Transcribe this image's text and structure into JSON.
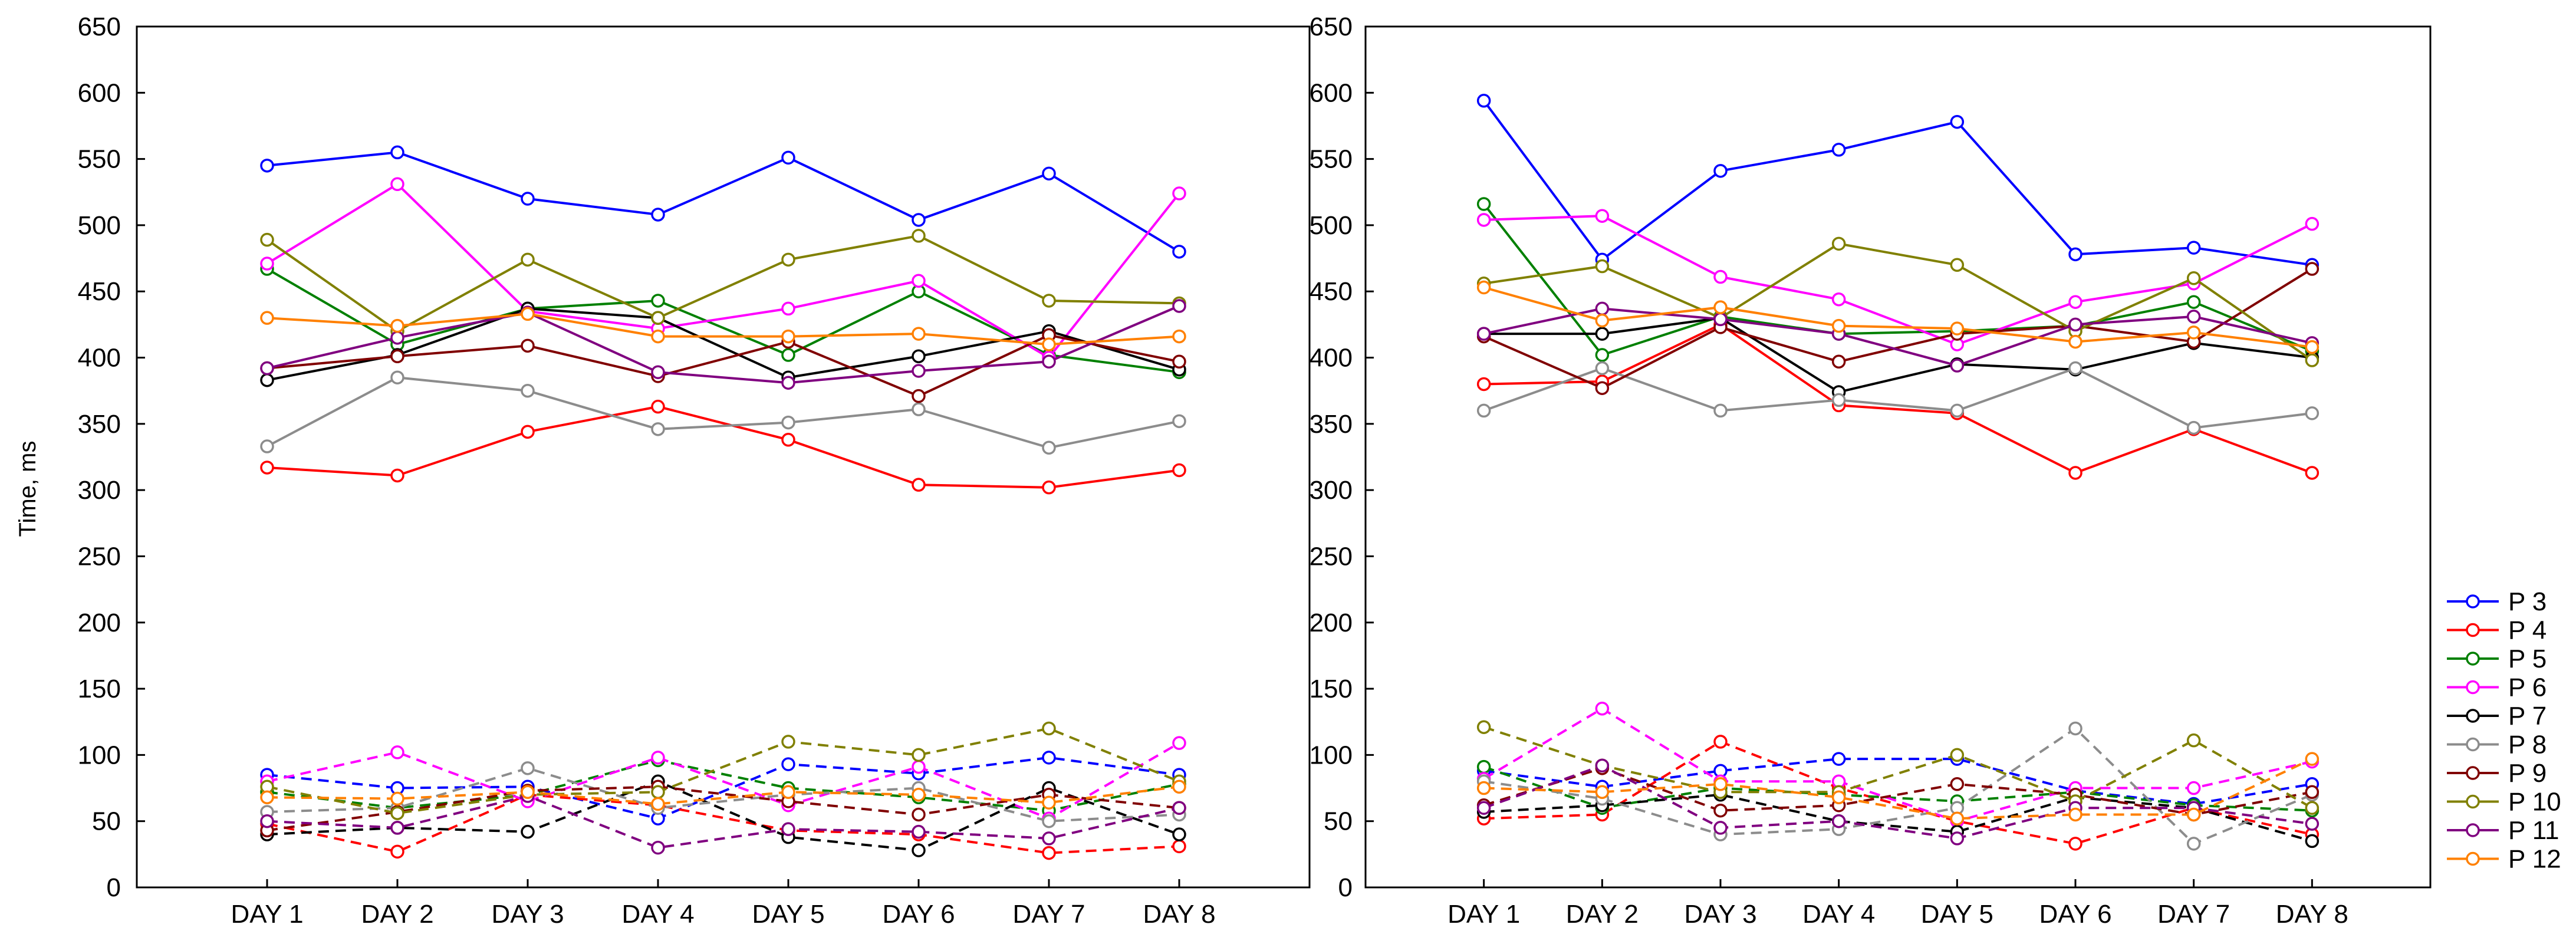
{
  "chart_data": [
    {
      "type": "line",
      "title": "",
      "xlabel": "",
      "ylabel": "Time, ms",
      "ylim": [
        0,
        650
      ],
      "yticks": [
        0,
        50,
        100,
        150,
        200,
        250,
        300,
        350,
        400,
        450,
        500,
        550,
        600,
        650
      ],
      "grid": false,
      "categories": [
        "DAY 1",
        "DAY 2",
        "DAY 3",
        "DAY 4",
        "DAY 5",
        "DAY 6",
        "DAY 7",
        "DAY 8"
      ],
      "series": [
        {
          "name": "P 3",
          "group": "solid",
          "values": [
            545,
            555,
            520,
            508,
            551,
            504,
            539,
            480
          ]
        },
        {
          "name": "P 4",
          "group": "solid",
          "values": [
            317,
            311,
            344,
            363,
            338,
            304,
            302,
            315
          ]
        },
        {
          "name": "P 5",
          "group": "solid",
          "values": [
            467,
            410,
            437,
            443,
            402,
            450,
            402,
            389
          ]
        },
        {
          "name": "P 6",
          "group": "solid",
          "values": [
            471,
            531,
            435,
            422,
            437,
            458,
            400,
            524
          ]
        },
        {
          "name": "P 7",
          "group": "solid",
          "values": [
            383,
            402,
            437,
            430,
            385,
            401,
            420,
            391
          ]
        },
        {
          "name": "P 8",
          "group": "solid",
          "values": [
            333,
            385,
            375,
            346,
            351,
            361,
            332,
            352
          ]
        },
        {
          "name": "P 9",
          "group": "solid",
          "values": [
            392,
            401,
            409,
            386,
            412,
            371,
            417,
            397
          ]
        },
        {
          "name": "P 10",
          "group": "solid",
          "values": [
            489,
            420,
            474,
            430,
            474,
            492,
            443,
            441
          ]
        },
        {
          "name": "P 11",
          "group": "solid",
          "values": [
            392,
            415,
            434,
            389,
            381,
            390,
            397,
            439
          ]
        },
        {
          "name": "P 12",
          "group": "solid",
          "values": [
            430,
            424,
            433,
            416,
            416,
            418,
            410,
            416
          ]
        },
        {
          "name": "P 3",
          "group": "dashed",
          "values": [
            85,
            75,
            76,
            52,
            93,
            86,
            98,
            85
          ]
        },
        {
          "name": "P 4",
          "group": "dashed",
          "values": [
            48,
            27,
            70,
            62,
            43,
            40,
            26,
            31
          ]
        },
        {
          "name": "P 5",
          "group": "dashed",
          "values": [
            72,
            60,
            70,
            96,
            75,
            68,
            58,
            78
          ]
        },
        {
          "name": "P 6",
          "group": "dashed",
          "values": [
            80,
            102,
            65,
            98,
            62,
            91,
            52,
            109
          ]
        },
        {
          "name": "P 7",
          "group": "dashed",
          "values": [
            40,
            45,
            42,
            80,
            38,
            28,
            75,
            40
          ]
        },
        {
          "name": "P 8",
          "group": "dashed",
          "values": [
            57,
            60,
            90,
            60,
            70,
            75,
            50,
            55
          ]
        },
        {
          "name": "P 9",
          "group": "dashed",
          "values": [
            43,
            57,
            73,
            76,
            65,
            55,
            70,
            60
          ]
        },
        {
          "name": "P 10",
          "group": "dashed",
          "values": [
            76,
            56,
            70,
            72,
            110,
            100,
            120,
            80
          ]
        },
        {
          "name": "P 11",
          "group": "dashed",
          "values": [
            50,
            45,
            69,
            30,
            44,
            42,
            37,
            60
          ]
        },
        {
          "name": "P 12",
          "group": "dashed",
          "values": [
            68,
            67,
            72,
            63,
            72,
            70,
            64,
            76
          ]
        }
      ]
    },
    {
      "type": "line",
      "title": "",
      "xlabel": "",
      "ylabel": "",
      "ylim": [
        0,
        650
      ],
      "yticks": [
        0,
        50,
        100,
        150,
        200,
        250,
        300,
        350,
        400,
        450,
        500,
        550,
        600,
        650
      ],
      "grid": false,
      "categories": [
        "DAY 1",
        "DAY 2",
        "DAY 3",
        "DAY 4",
        "DAY 5",
        "DAY 6",
        "DAY 7",
        "DAY 8"
      ],
      "series": [
        {
          "name": "P 3",
          "group": "solid",
          "values": [
            594,
            474,
            541,
            557,
            578,
            478,
            483,
            470
          ]
        },
        {
          "name": "P 4",
          "group": "solid",
          "values": [
            380,
            382,
            425,
            364,
            358,
            313,
            346,
            313
          ]
        },
        {
          "name": "P 5",
          "group": "solid",
          "values": [
            516,
            402,
            431,
            418,
            420,
            424,
            442,
            405
          ]
        },
        {
          "name": "P 6",
          "group": "solid",
          "values": [
            504,
            507,
            461,
            444,
            410,
            442,
            456,
            501
          ]
        },
        {
          "name": "P 7",
          "group": "solid",
          "values": [
            418,
            418,
            430,
            374,
            395,
            391,
            411,
            400
          ]
        },
        {
          "name": "P 8",
          "group": "solid",
          "values": [
            360,
            392,
            360,
            368,
            360,
            392,
            347,
            358
          ]
        },
        {
          "name": "P 9",
          "group": "solid",
          "values": [
            416,
            377,
            423,
            397,
            418,
            424,
            412,
            467
          ]
        },
        {
          "name": "P 10",
          "group": "solid",
          "values": [
            456,
            469,
            430,
            486,
            470,
            420,
            460,
            398
          ]
        },
        {
          "name": "P 11",
          "group": "solid",
          "values": [
            418,
            437,
            429,
            418,
            394,
            425,
            431,
            411
          ]
        },
        {
          "name": "P 12",
          "group": "solid",
          "values": [
            453,
            428,
            438,
            424,
            422,
            412,
            419,
            408
          ]
        },
        {
          "name": "P 3",
          "group": "dashed",
          "values": [
            88,
            76,
            88,
            97,
            97,
            73,
            63,
            78
          ]
        },
        {
          "name": "P 4",
          "group": "dashed",
          "values": [
            52,
            55,
            110,
            75,
            50,
            33,
            60,
            40
          ]
        },
        {
          "name": "P 5",
          "group": "dashed",
          "values": [
            91,
            60,
            75,
            70,
            65,
            72,
            62,
            58
          ]
        },
        {
          "name": "P 6",
          "group": "dashed",
          "values": [
            82,
            135,
            80,
            80,
            50,
            75,
            75,
            95
          ]
        },
        {
          "name": "P 7",
          "group": "dashed",
          "values": [
            57,
            62,
            70,
            50,
            42,
            68,
            60,
            35
          ]
        },
        {
          "name": "P 8",
          "group": "dashed",
          "values": [
            80,
            67,
            40,
            44,
            60,
            120,
            33,
            70
          ]
        },
        {
          "name": "P 9",
          "group": "dashed",
          "values": [
            62,
            90,
            58,
            62,
            78,
            70,
            55,
            72
          ]
        },
        {
          "name": "P 10",
          "group": "dashed",
          "values": [
            121,
            92,
            72,
            72,
            100,
            65,
            111,
            60
          ]
        },
        {
          "name": "P 11",
          "group": "dashed",
          "values": [
            60,
            92,
            45,
            50,
            37,
            60,
            60,
            48
          ]
        },
        {
          "name": "P 12",
          "group": "dashed",
          "values": [
            75,
            72,
            78,
            68,
            52,
            55,
            55,
            97
          ]
        }
      ]
    }
  ],
  "legend": {
    "placement": "right-bottom",
    "entries": [
      {
        "name": "P 3",
        "color": "#0000ff"
      },
      {
        "name": "P 4",
        "color": "#ff0000"
      },
      {
        "name": "P 5",
        "color": "#008000"
      },
      {
        "name": "P 6",
        "color": "#ff00ff"
      },
      {
        "name": "P 7",
        "color": "#000000"
      },
      {
        "name": "P 8",
        "color": "#8c8c8c"
      },
      {
        "name": "P 9",
        "color": "#800000"
      },
      {
        "name": "P 10",
        "color": "#808000"
      },
      {
        "name": "P 11",
        "color": "#800080"
      },
      {
        "name": "P 12",
        "color": "#ff8000"
      }
    ]
  },
  "icons": {
    "legend_marker": "circle-marker-icon"
  }
}
